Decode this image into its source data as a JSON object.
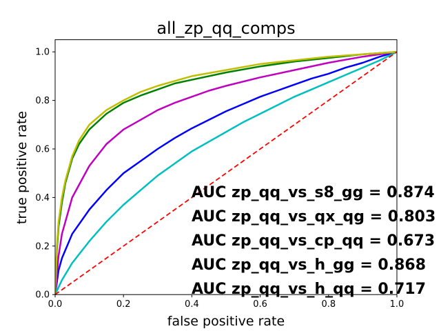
{
  "chart_data": {
    "type": "line",
    "title": "all_zp_qq_comps",
    "xlabel": "false positive rate",
    "ylabel": "true positive rate",
    "xlim": [
      0,
      1
    ],
    "ylim": [
      0,
      1.05
    ],
    "xticks": [
      "0.0",
      "0.2",
      "0.4",
      "0.6",
      "0.8",
      "1.0"
    ],
    "yticks": [
      "0.0",
      "0.2",
      "0.4",
      "0.6",
      "0.8",
      "1.0"
    ],
    "grid": false,
    "series": [
      {
        "color": "#0000ff",
        "style": "solid",
        "x": [
          0,
          0.01,
          0.02,
          0.05,
          0.1,
          0.15,
          0.2,
          0.25,
          0.3,
          0.35,
          0.4,
          0.45,
          0.5,
          0.55,
          0.6,
          0.65,
          0.7,
          0.75,
          0.8,
          0.85,
          0.9,
          0.95,
          1.0
        ],
        "y": [
          0,
          0.1,
          0.15,
          0.25,
          0.35,
          0.43,
          0.5,
          0.55,
          0.6,
          0.645,
          0.685,
          0.72,
          0.755,
          0.785,
          0.815,
          0.84,
          0.865,
          0.89,
          0.91,
          0.935,
          0.955,
          0.98,
          1.0
        ]
      },
      {
        "color": "#00bfbf",
        "style": "solid",
        "x": [
          0,
          0.02,
          0.05,
          0.1,
          0.15,
          0.2,
          0.25,
          0.3,
          0.35,
          0.4,
          0.45,
          0.5,
          0.55,
          0.6,
          0.65,
          0.7,
          0.75,
          0.8,
          0.85,
          0.9,
          0.95,
          1.0
        ],
        "y": [
          0,
          0.06,
          0.13,
          0.22,
          0.3,
          0.37,
          0.43,
          0.49,
          0.54,
          0.59,
          0.63,
          0.67,
          0.71,
          0.745,
          0.78,
          0.815,
          0.845,
          0.875,
          0.905,
          0.935,
          0.965,
          1.0
        ]
      },
      {
        "color": "#bf00bf",
        "style": "solid",
        "x": [
          0,
          0.01,
          0.02,
          0.05,
          0.1,
          0.15,
          0.2,
          0.25,
          0.3,
          0.35,
          0.4,
          0.45,
          0.5,
          0.6,
          0.7,
          0.8,
          0.9,
          1.0
        ],
        "y": [
          0,
          0.16,
          0.25,
          0.4,
          0.53,
          0.62,
          0.68,
          0.72,
          0.76,
          0.79,
          0.815,
          0.84,
          0.86,
          0.895,
          0.925,
          0.955,
          0.98,
          1.0
        ]
      },
      {
        "color": "#008000",
        "style": "solid",
        "x": [
          0,
          0.005,
          0.01,
          0.02,
          0.03,
          0.05,
          0.07,
          0.1,
          0.15,
          0.2,
          0.25,
          0.3,
          0.35,
          0.4,
          0.5,
          0.6,
          0.7,
          0.8,
          0.9,
          1.0
        ],
        "y": [
          0,
          0.18,
          0.28,
          0.38,
          0.46,
          0.56,
          0.62,
          0.68,
          0.745,
          0.79,
          0.82,
          0.845,
          0.87,
          0.885,
          0.915,
          0.94,
          0.96,
          0.975,
          0.99,
          1.0
        ]
      },
      {
        "color": "#bfbf00",
        "style": "solid",
        "x": [
          0,
          0.005,
          0.01,
          0.02,
          0.03,
          0.05,
          0.07,
          0.1,
          0.15,
          0.2,
          0.25,
          0.3,
          0.35,
          0.4,
          0.5,
          0.6,
          0.7,
          0.8,
          0.9,
          1.0
        ],
        "y": [
          0,
          0.2,
          0.3,
          0.4,
          0.47,
          0.57,
          0.635,
          0.7,
          0.76,
          0.8,
          0.835,
          0.86,
          0.88,
          0.9,
          0.925,
          0.95,
          0.965,
          0.98,
          0.99,
          1.0
        ]
      },
      {
        "color": "#ff0000",
        "style": "dashed",
        "x": [
          0,
          1
        ],
        "y": [
          0,
          1
        ]
      }
    ],
    "annotations": [
      "AUC zp_qq_vs_s8_gg = 0.874",
      "AUC zp_qq_vs_qx_qg = 0.803",
      "AUC zp_qq_vs_cp_qq = 0.673",
      "AUC zp_qq_vs_h_gg = 0.868",
      "AUC zp_qq_vs_h_qq = 0.717"
    ]
  }
}
